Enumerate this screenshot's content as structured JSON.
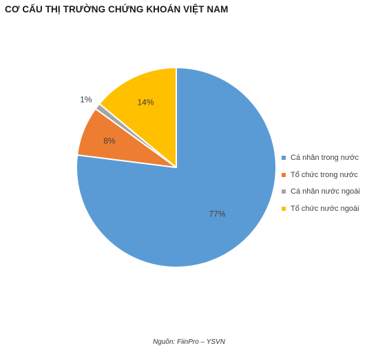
{
  "header": {
    "title": "CƠ CẤU THỊ TRƯỜNG CHỨNG KHOÁN VIỆT NAM"
  },
  "footer": {
    "source": "Nguồn: FiinPro – YSVN"
  },
  "chart_data": {
    "type": "pie",
    "title": "CƠ CẤU THỊ TRƯỜNG CHỨNG KHOÁN VIỆT NAM",
    "legend_position": "right",
    "slices": [
      {
        "name": "Cá nhân trong nước",
        "value": 77,
        "label": "77%",
        "color": "#5b9bd5"
      },
      {
        "name": "Tổ chức trong nước",
        "value": 8,
        "label": "8%",
        "color": "#ed7d31"
      },
      {
        "name": "Cá nhân nước ngoài",
        "value": 1,
        "label": "1%",
        "color": "#a5a5a5"
      },
      {
        "name": "Tổ chức nước ngoài",
        "value": 14,
        "label": "14%",
        "color": "#ffc000"
      }
    ]
  }
}
